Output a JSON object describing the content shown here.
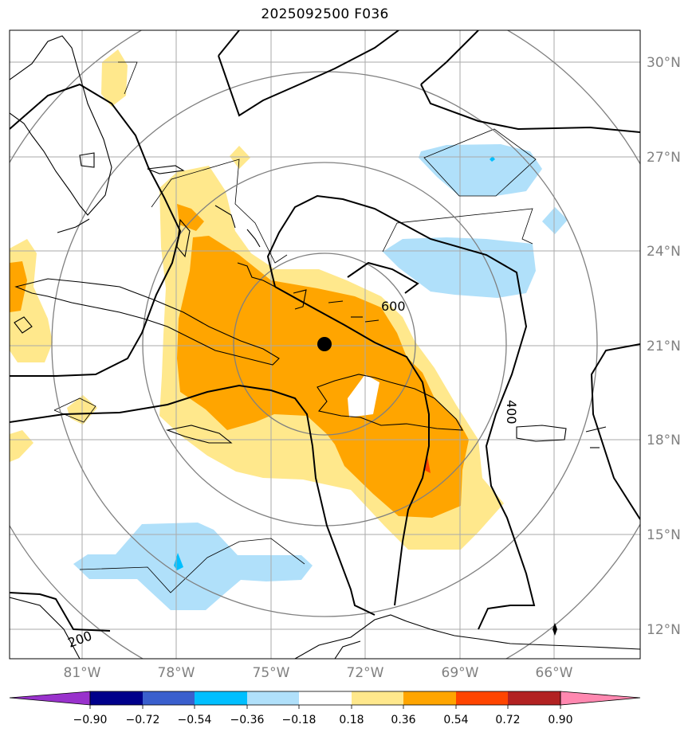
{
  "title": "2025092500 F036",
  "map": {
    "lat_labels": [
      "30°N",
      "27°N",
      "24°N",
      "21°N",
      "18°N",
      "15°N",
      "12°N"
    ],
    "lon_labels": [
      "81°W",
      "78°W",
      "75°W",
      "72°W",
      "69°W",
      "66°W"
    ],
    "contour_labels": [
      "600",
      "400",
      "200"
    ],
    "storm_center_label": ""
  },
  "colorbar": {
    "ticks": [
      "−0.90",
      "−0.72",
      "−0.54",
      "−0.36",
      "−0.18",
      "0.18",
      "0.36",
      "0.54",
      "0.72",
      "0.90"
    ],
    "colors": [
      "#9932cc",
      "#00008b",
      "#3a5fcd",
      "#00bfff",
      "#b0e0fa",
      "#ffffff",
      "#ffe88c",
      "#ffa500",
      "#ff4500",
      "#b22222",
      "#ff88b0"
    ]
  },
  "colors": {
    "shade_light_yellow": "#ffe88c",
    "shade_orange": "#ffa500",
    "shade_red": "#ff4500",
    "shade_light_blue": "#b0e0fa",
    "shade_blue": "#00bfff",
    "grid": "#aaaaaa",
    "range_rings": "#808080"
  }
}
